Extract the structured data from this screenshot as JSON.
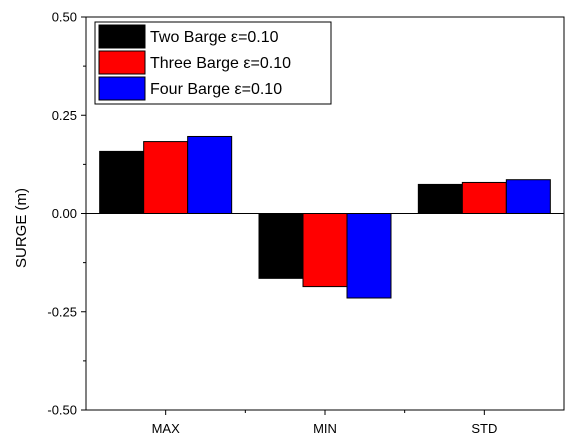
{
  "chart_data": {
    "type": "bar",
    "categories": [
      "MAX",
      "MIN",
      "STD"
    ],
    "series": [
      {
        "name": "Two Barge ε=0.10",
        "color": "#000000",
        "values": [
          0.158,
          -0.165,
          0.074
        ]
      },
      {
        "name": "Three Barge ε=0.10",
        "color": "#ff0000",
        "values": [
          0.183,
          -0.186,
          0.079
        ]
      },
      {
        "name": "Four Barge ε=0.10",
        "color": "#0000ff",
        "values": [
          0.196,
          -0.215,
          0.086
        ]
      }
    ],
    "title": "",
    "xlabel": "",
    "ylabel": "SURGE (m)",
    "ylim": [
      -0.5,
      0.5
    ],
    "yticks": [
      "0.50",
      "0.25",
      "0.00",
      "-0.25",
      "-0.50"
    ],
    "ytick_values": [
      0.5,
      0.25,
      0.0,
      -0.25,
      -0.5
    ],
    "grid": false,
    "legend_position": "top-left",
    "baseline": 0
  }
}
